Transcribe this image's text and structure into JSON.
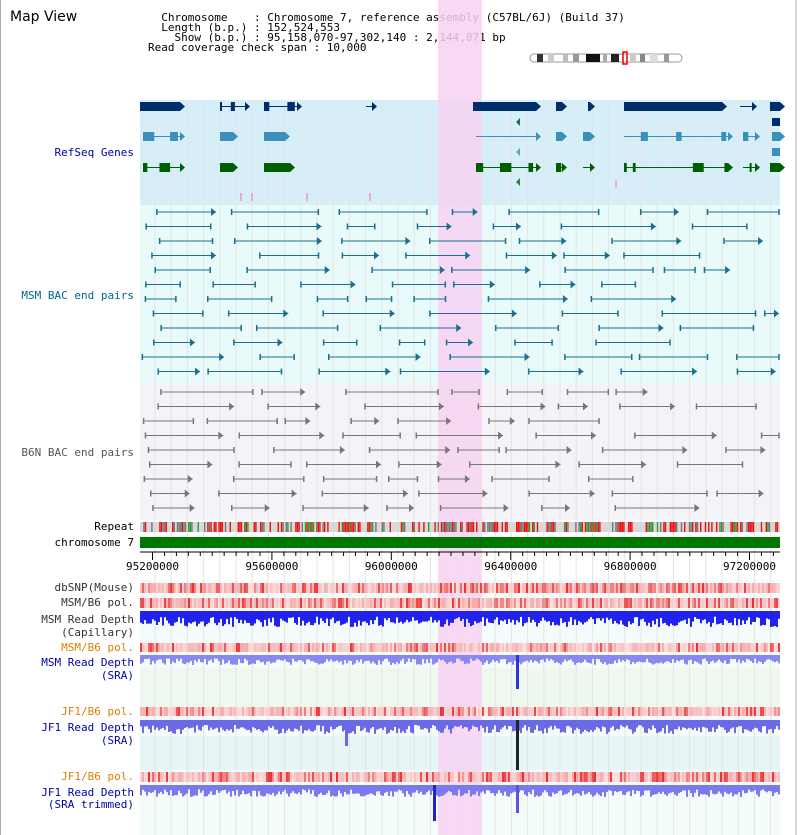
{
  "header": {
    "title": "Map View",
    "info_lines": [
      "  Chromosome    : Chromosome 7, reference assembly (C57BL/6J) (Build 37)",
      "  Length (b.p.) : 152,524,553",
      "    Show (b.p.) : 95,158,070-97,302,140 : 2,144,071 bp",
      "Read coverage check span : 10,000"
    ]
  },
  "tracks": {
    "refseq": "RefSeq Genes",
    "msm_bac": "MSM BAC end pairs",
    "b6n_bac": "B6N BAC end pairs",
    "repeat": "Repeat",
    "chromosome": "chromosome 7",
    "dbsnp": "dbSNP(Mouse)",
    "msm_b6_pol": "MSM/B6 pol.",
    "msm_depth_cap_1": "MSM Read Depth",
    "msm_depth_cap_2": "(Capillary)",
    "msm_b6_pol_sra": "MSM/B6 pol.",
    "msm_depth_sra_1": "MSM Read Depth",
    "msm_depth_sra_2": "(SRA)",
    "jf1_b6_pol": "JF1/B6 pol.",
    "jf1_depth_sra_1": "JF1 Read Depth",
    "jf1_depth_sra_2": "(SRA)",
    "jf1_b6_pol_trim": "JF1/B6 pol.",
    "jf1_depth_trim_1": "JF1 Read Depth",
    "jf1_depth_trim_2": "(SRA trimmed)"
  },
  "axis": {
    "ticks": [
      "95200000",
      "95600000",
      "96000000",
      "96400000",
      "96800000",
      "97200000"
    ],
    "tick_values": [
      95200000,
      95600000,
      96000000,
      96400000,
      96800000,
      97200000
    ],
    "range": [
      95158070,
      97302140
    ]
  },
  "colors": {
    "refseq_bg": "#d6eef8",
    "bac_bg": "#e8fafa",
    "b6n_bg": "#f4f4f8",
    "highlight": "#f7d2f2",
    "label_blue": "#0000aa",
    "label_teal": "#006688",
    "label_orange": "#e08000",
    "chrom_green": "#007700",
    "gene_navy": "#002d6b",
    "gene_cyan": "#3a90b8",
    "gene_green": "#005e00",
    "bac_teal": "#1a6f8e",
    "b6n_gray": "#777777",
    "depth_blue": "#1c1ce6",
    "depth_light": "#7777ee",
    "pol_red": "#ee7777"
  }
}
